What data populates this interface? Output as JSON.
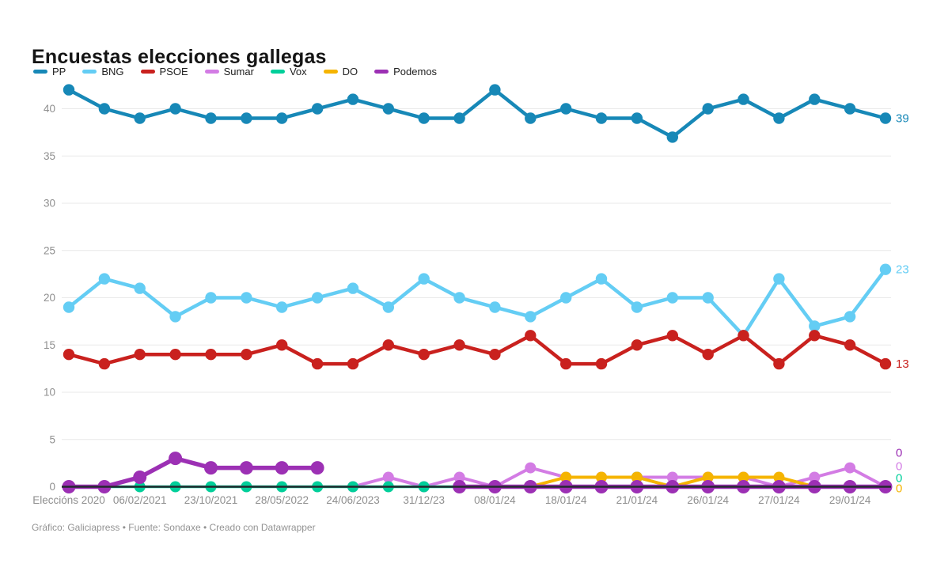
{
  "header": {
    "title": "Encuestas elecciones gallegas"
  },
  "footer": {
    "credit": "Gráfico: Galiciapress • Fuente: Sondaxe • Creado con Datawrapper"
  },
  "colors": {
    "background": "#ffffff",
    "grid": "#e9e9e9",
    "zero_axis_line": "#24292e",
    "tick_text": "#8f8f8f",
    "title_text": "#151515",
    "footer_text": "#939393"
  },
  "chart_data": {
    "type": "line",
    "title": "Encuestas elecciones gallegas",
    "xlabel": "",
    "ylabel": "",
    "ylim": [
      0,
      43
    ],
    "grid": "horizontal",
    "legend_position": "top",
    "n_points": 24,
    "y_ticks": [
      0,
      5,
      10,
      15,
      20,
      25,
      30,
      35,
      40
    ],
    "x_tick_labels": [
      {
        "index": 0,
        "label": "Eleccións 2020"
      },
      {
        "index": 2,
        "label": "06/02/2021"
      },
      {
        "index": 4,
        "label": "23/10/2021"
      },
      {
        "index": 6,
        "label": "28/05/2022"
      },
      {
        "index": 8,
        "label": "24/06/2023"
      },
      {
        "index": 10,
        "label": "31/12/23"
      },
      {
        "index": 12,
        "label": "08/01/24"
      },
      {
        "index": 14,
        "label": "18/01/24"
      },
      {
        "index": 16,
        "label": "21/01/24"
      },
      {
        "index": 18,
        "label": "26/01/24"
      },
      {
        "index": 20,
        "label": "27/01/24"
      },
      {
        "index": 22,
        "label": "29/01/24"
      }
    ],
    "series": [
      {
        "name": "PP",
        "color": "#1788b7",
        "end_label": "39",
        "values": [
          42,
          40,
          39,
          40,
          39,
          39,
          39,
          40,
          41,
          40,
          39,
          39,
          42,
          39,
          40,
          39,
          39,
          37,
          40,
          41,
          39,
          41,
          40,
          39
        ]
      },
      {
        "name": "BNG",
        "color": "#64cdf4",
        "end_label": "23",
        "values": [
          19,
          22,
          21,
          18,
          20,
          20,
          19,
          20,
          21,
          19,
          22,
          20,
          19,
          18,
          20,
          22,
          19,
          20,
          20,
          16,
          22,
          17,
          18,
          23
        ]
      },
      {
        "name": "PSOE",
        "color": "#c9211e",
        "end_label": "13",
        "values": [
          14,
          13,
          14,
          14,
          14,
          14,
          15,
          13,
          13,
          15,
          14,
          15,
          14,
          16,
          13,
          13,
          15,
          16,
          14,
          16,
          13,
          16,
          15,
          13
        ]
      },
      {
        "name": "Sumar",
        "color": "#d37ce4",
        "end_label": "0",
        "values": [
          null,
          null,
          null,
          null,
          null,
          null,
          null,
          null,
          0,
          1,
          0,
          1,
          0,
          2,
          1,
          1,
          1,
          1,
          1,
          1,
          0,
          1,
          2,
          0
        ]
      },
      {
        "name": "Vox",
        "color": "#00cf9a",
        "end_label": "0",
        "values": [
          0,
          0,
          0,
          0,
          0,
          0,
          0,
          0,
          0,
          0,
          0,
          0,
          null,
          null,
          null,
          null,
          1,
          0,
          0,
          0,
          0,
          0,
          0,
          0
        ]
      },
      {
        "name": "DO",
        "color": "#f5b401",
        "end_label": "0",
        "values": [
          null,
          null,
          null,
          null,
          null,
          null,
          null,
          null,
          null,
          null,
          null,
          null,
          0,
          0,
          1,
          1,
          1,
          0,
          1,
          1,
          1,
          0,
          0,
          0
        ]
      },
      {
        "name": "Podemos",
        "color": "#9c30b4",
        "end_label": "0",
        "values": [
          0,
          0,
          1,
          3,
          2,
          2,
          2,
          2,
          null,
          null,
          null,
          0,
          0,
          0,
          0,
          0,
          0,
          0,
          0,
          0,
          0,
          0,
          0,
          0
        ]
      }
    ]
  }
}
